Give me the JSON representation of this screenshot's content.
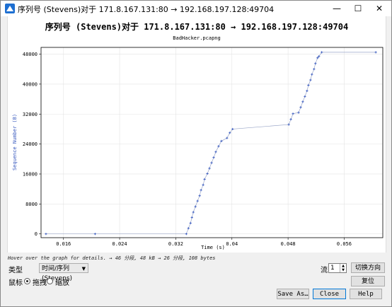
{
  "window": {
    "title": "序列号 (Stevens)对于 171.8.167.131:80 → 192.168.197.128:49704",
    "minimize": "—",
    "maximize": "☐",
    "close": "✕"
  },
  "chart_data": {
    "type": "scatter",
    "title": "序列号 (Stevens)对于 171.8.167.131:80 → 192.168.197.128:49704",
    "subtitle": "BadHacker.pcapng",
    "xlabel": "Time (s)",
    "ylabel": "Sequence Number (B)",
    "xlim": [
      0.0128,
      0.0615
    ],
    "ylim": [
      -1000,
      49800
    ],
    "x_ticks": [
      0.016,
      0.024,
      0.032,
      0.04,
      0.048,
      0.056
    ],
    "x_tick_labels": [
      "0.016",
      "0.024",
      "0.032",
      "0.04",
      "0.048",
      "0.056"
    ],
    "y_ticks": [
      0,
      8000,
      16000,
      24000,
      32000,
      40000,
      48000
    ],
    "y_tick_labels": [
      "0",
      "8000",
      "16000",
      "24000",
      "32000",
      "40000",
      "48000"
    ],
    "grid": true,
    "color": "#3a5bbf",
    "points": [
      [
        0.0135,
        0
      ],
      [
        0.0205,
        0
      ],
      [
        0.0335,
        0
      ],
      [
        0.0338,
        1500
      ],
      [
        0.0341,
        2900
      ],
      [
        0.0343,
        4400
      ],
      [
        0.0345,
        5800
      ],
      [
        0.0348,
        7300
      ],
      [
        0.0351,
        8800
      ],
      [
        0.0354,
        10200
      ],
      [
        0.0356,
        11700
      ],
      [
        0.0359,
        13100
      ],
      [
        0.0361,
        14600
      ],
      [
        0.0365,
        16100
      ],
      [
        0.0368,
        17500
      ],
      [
        0.0371,
        19000
      ],
      [
        0.0374,
        20400
      ],
      [
        0.0377,
        21900
      ],
      [
        0.0381,
        23400
      ],
      [
        0.0385,
        24800
      ],
      [
        0.0393,
        25600
      ],
      [
        0.0397,
        27000
      ],
      [
        0.0401,
        28000
      ],
      [
        0.0481,
        29200
      ],
      [
        0.0484,
        30600
      ],
      [
        0.0487,
        32100
      ],
      [
        0.0495,
        32400
      ],
      [
        0.0498,
        33800
      ],
      [
        0.0501,
        35300
      ],
      [
        0.0504,
        36700
      ],
      [
        0.0507,
        38200
      ],
      [
        0.0509,
        39700
      ],
      [
        0.0512,
        41100
      ],
      [
        0.0514,
        42600
      ],
      [
        0.0517,
        44000
      ],
      [
        0.0519,
        45500
      ],
      [
        0.0522,
        47000
      ],
      [
        0.0524,
        47400
      ],
      [
        0.0528,
        48500
      ],
      [
        0.0605,
        48500
      ]
    ]
  },
  "status": {
    "hint": "Hover over the graph for details. → 46 分段, 48 kB → 26 分段, 108 bytes"
  },
  "controls": {
    "type_label": "类型",
    "type_value": "时间/序列 (Stevens)",
    "mouse_label": "鼠标",
    "drag_label": "拖拽",
    "zoom_label": "缩放",
    "stream_label": "流",
    "stream_value": "1",
    "switch_direction": "切换方向",
    "reset": "复位",
    "save_as": "Save As…",
    "close": "Close",
    "help": "Help"
  }
}
